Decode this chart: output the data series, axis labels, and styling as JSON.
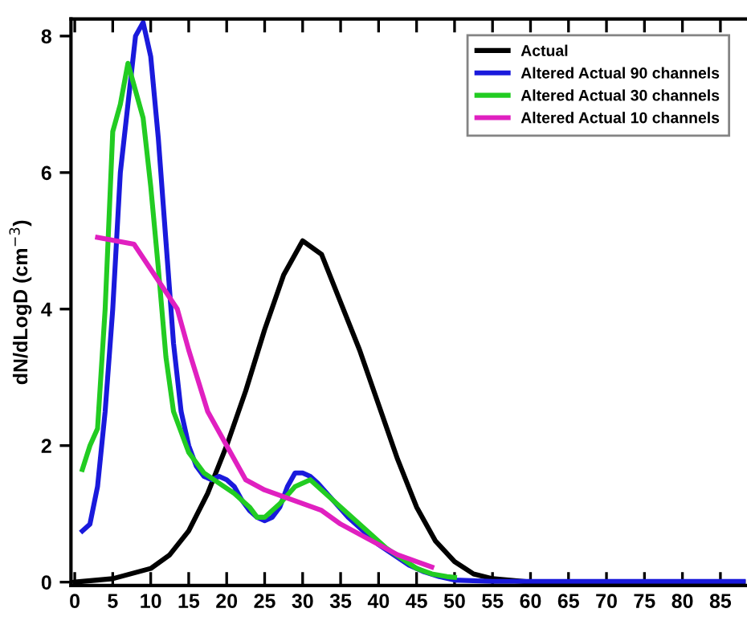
{
  "chart_data": {
    "type": "line",
    "ylabel": "dN/dLogD (cm$^{−3}$)",
    "xlim": [
      -0.5,
      88.5
    ],
    "ylim": [
      -0.05,
      8.25
    ],
    "xticks": [
      0,
      5,
      10,
      15,
      20,
      25,
      30,
      35,
      40,
      45,
      50,
      55,
      60,
      65,
      70,
      75,
      80,
      85
    ],
    "yticks": [
      0,
      2,
      4,
      6,
      8
    ],
    "legend": "top right",
    "grid": false,
    "marker": "none",
    "line_style": "solid",
    "series": [
      {
        "name": "Actual",
        "color": "#000000",
        "x": [
          0,
          5,
          10,
          12.5,
          15,
          17.5,
          20,
          22.5,
          25,
          27.5,
          30,
          32.5,
          35,
          37.5,
          40,
          42.5,
          45,
          47.5,
          50,
          52.5,
          55,
          60,
          88
        ],
        "values": [
          0.0,
          0.05,
          0.2,
          0.4,
          0.75,
          1.3,
          2.0,
          2.8,
          3.7,
          4.5,
          5.0,
          4.8,
          4.1,
          3.4,
          2.6,
          1.8,
          1.1,
          0.6,
          0.3,
          0.12,
          0.05,
          0.0,
          0.0
        ]
      },
      {
        "name": "Altered Actual 90 channels",
        "color": "#1a1adc",
        "x": [
          1,
          2,
          3,
          4,
          5,
          6,
          7,
          8,
          9,
          10,
          11,
          12,
          13,
          14,
          15,
          16,
          17,
          18,
          19,
          20,
          21,
          22,
          23,
          24,
          25,
          26,
          27,
          28,
          29,
          30,
          31,
          32,
          34,
          36,
          38,
          40,
          42,
          44,
          46,
          48,
          50,
          55,
          88
        ],
        "values": [
          0.75,
          0.85,
          1.4,
          2.5,
          4,
          6,
          7.0,
          8.0,
          8.2,
          7.7,
          6.5,
          5,
          3.5,
          2.5,
          2.0,
          1.7,
          1.55,
          1.5,
          1.55,
          1.5,
          1.4,
          1.2,
          1.05,
          0.95,
          0.9,
          0.95,
          1.1,
          1.4,
          1.6,
          1.6,
          1.55,
          1.45,
          1.2,
          0.95,
          0.75,
          0.55,
          0.4,
          0.25,
          0.15,
          0.08,
          0.03,
          0.01,
          0.01
        ]
      },
      {
        "name": "Altered Actual 30 channels",
        "color": "#22cc22",
        "x": [
          1,
          2,
          3,
          4,
          5,
          6,
          7,
          8,
          9,
          10,
          11,
          12,
          13,
          14,
          15,
          17,
          19,
          21,
          23,
          24,
          25,
          27,
          29,
          31,
          33,
          35,
          37,
          39,
          41,
          43,
          45,
          47,
          49,
          50
        ],
        "values": [
          1.65,
          2.0,
          2.25,
          4,
          6.6,
          7.0,
          7.6,
          7.2,
          6.8,
          5.8,
          4.6,
          3.3,
          2.5,
          2.2,
          1.9,
          1.6,
          1.45,
          1.3,
          1.1,
          0.95,
          0.95,
          1.15,
          1.4,
          1.5,
          1.3,
          1.1,
          0.9,
          0.7,
          0.5,
          0.35,
          0.2,
          0.12,
          0.08,
          0.07
        ]
      },
      {
        "name": "Altered Actual 10 channels",
        "color": "#e020c0",
        "x": [
          3,
          7.8,
          13.5,
          15,
          17.5,
          20,
          22.5,
          25,
          30,
          32.5,
          35,
          37.5,
          40,
          42.5,
          45,
          47
        ],
        "values": [
          5.05,
          4.95,
          4.0,
          3.4,
          2.5,
          2.0,
          1.5,
          1.35,
          1.15,
          1.05,
          0.85,
          0.7,
          0.55,
          0.4,
          0.3,
          0.22
        ]
      }
    ]
  }
}
